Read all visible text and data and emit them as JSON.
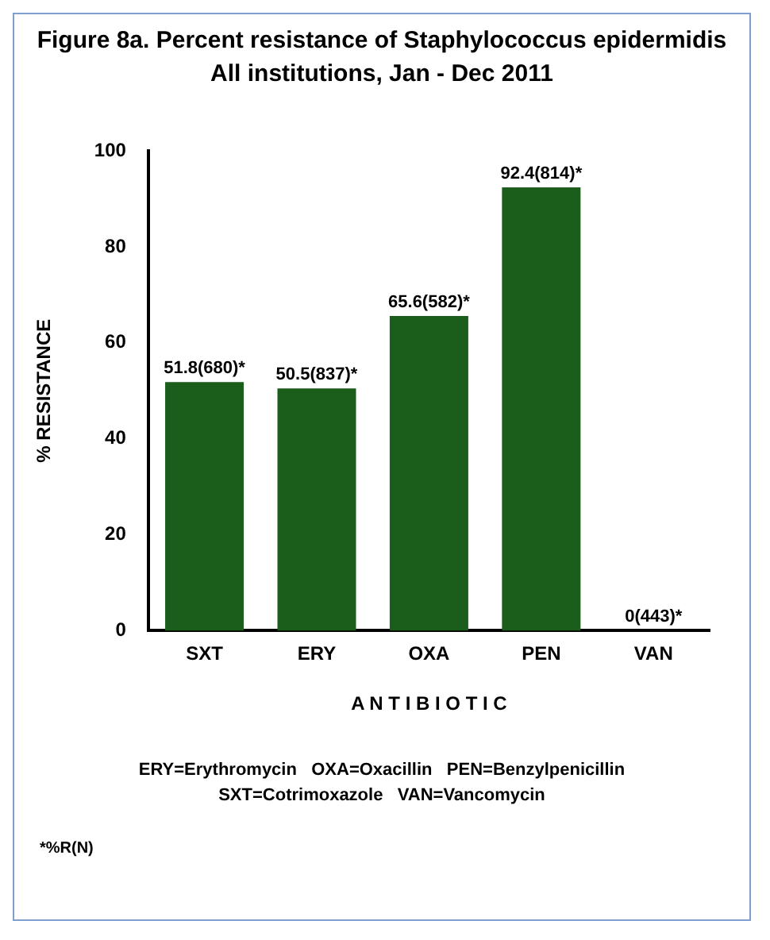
{
  "chart_data": {
    "type": "bar",
    "title": "Figure 8a. Percent resistance of Staphylococcus epidermidis",
    "subtitle": "All institutions, Jan - Dec 2011",
    "xlabel": "A N T I B I O T I C",
    "ylabel": "% RESISTANCE",
    "categories": [
      "SXT",
      "ERY",
      "OXA",
      "PEN",
      "VAN"
    ],
    "values": [
      51.8,
      50.5,
      65.6,
      92.4,
      0
    ],
    "value_labels": [
      "51.8(680)*",
      "50.5(837)*",
      "65.6(582)*",
      "92.4(814)*",
      "0(443)*"
    ],
    "color": "#1b5e1b",
    "ylim": [
      0,
      100
    ],
    "yticks": [
      0,
      20,
      40,
      60,
      80,
      100
    ],
    "grid": false,
    "legend": false,
    "annotations": [
      "ERY=Erythromycin   OXA=Oxacillin   PEN=Benzylpenicillin",
      "SXT=Cotrimoxazole   VAN=Vancomycin",
      "*%R(N)"
    ]
  }
}
